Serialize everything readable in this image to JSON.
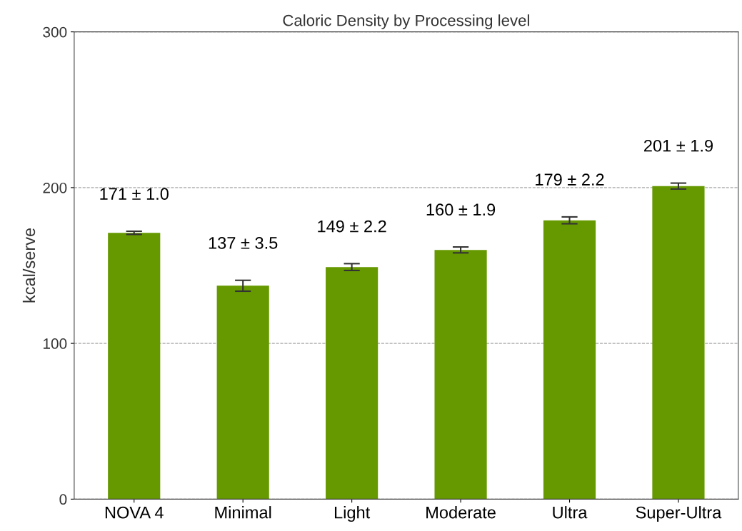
{
  "chart_data": {
    "type": "bar",
    "title": "Caloric Density by Processing level",
    "ylabel": "kcal/serve",
    "categories": [
      "NOVA 4",
      "Minimal",
      "Light",
      "Moderate",
      "Ultra",
      "Super-Ultra"
    ],
    "values": [
      171,
      137,
      149,
      160,
      179,
      201
    ],
    "errors": [
      1.0,
      3.5,
      2.2,
      1.9,
      2.2,
      1.9
    ],
    "value_labels": [
      "171 ± 1.0",
      "137 ± 3.5",
      "149 ± 2.2",
      "160 ± 1.9",
      "179 ± 2.2",
      "201 ± 1.9"
    ],
    "color": "#669900",
    "ylim": [
      0,
      300
    ],
    "yticks": [
      0,
      100,
      200,
      300
    ],
    "grid": "y"
  }
}
